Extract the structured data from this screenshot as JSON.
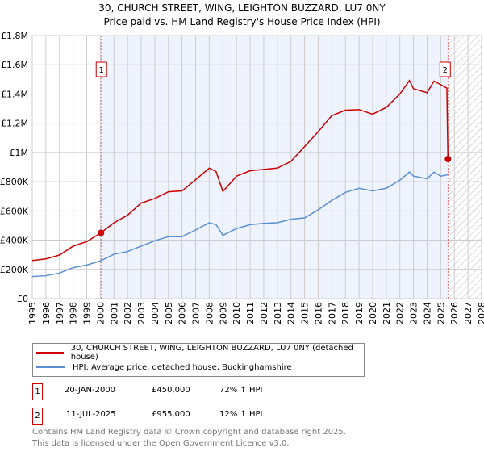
{
  "chart_data": {
    "type": "line",
    "title": "30, CHURCH STREET, WING, LEIGHTON BUZZARD, LU7 0NY",
    "subtitle": "Price paid vs. HM Land Registry's House Price Index (HPI)",
    "xlim": [
      1995,
      2028
    ],
    "ylim": [
      0,
      1800000
    ],
    "y_ticks": [
      0,
      200000,
      400000,
      600000,
      800000,
      1000000,
      1200000,
      1400000,
      1600000,
      1800000
    ],
    "y_tick_labels": [
      "£0",
      "£200K",
      "£400K",
      "£600K",
      "£800K",
      "£1M",
      "£1.2M",
      "£1.4M",
      "£1.6M",
      "£1.8M"
    ],
    "x_ticks": [
      1995,
      1996,
      1997,
      1998,
      1999,
      2000,
      2001,
      2002,
      2003,
      2004,
      2005,
      2006,
      2007,
      2008,
      2009,
      2010,
      2011,
      2012,
      2013,
      2014,
      2015,
      2016,
      2017,
      2018,
      2019,
      2020,
      2021,
      2022,
      2023,
      2024,
      2025,
      2026,
      2027,
      2028
    ],
    "grid": true,
    "series": [
      {
        "name": "30, CHURCH STREET, WING, LEIGHTON BUZZARD, LU7 0NY (detached house)",
        "color": "#cc0000",
        "x": [
          1995,
          1996,
          1997,
          1998,
          1999,
          2000.05,
          2001,
          2002,
          2003,
          2004,
          2005,
          2006,
          2007,
          2008,
          2008.5,
          2009,
          2010,
          2011,
          2012,
          2013,
          2014,
          2015,
          2016,
          2017,
          2018,
          2019,
          2020,
          2021,
          2022,
          2022.7,
          2023,
          2024,
          2024.5,
          2025,
          2025.45,
          2025.53
        ],
        "y": [
          261000,
          272000,
          298000,
          359000,
          390000,
          450000,
          519000,
          571000,
          654000,
          685000,
          731000,
          737000,
          814000,
          893000,
          869000,
          733000,
          838000,
          875000,
          884000,
          893000,
          939000,
          1040000,
          1142000,
          1252000,
          1289000,
          1293000,
          1262000,
          1308000,
          1400000,
          1492000,
          1436000,
          1409000,
          1488000,
          1464000,
          1440000,
          955000
        ]
      },
      {
        "name": "HPI: Average price, detached house, Buckinghamshire",
        "color": "#5b8fd4",
        "x": [
          1995,
          1996,
          1997,
          1998,
          1999,
          2000,
          2001,
          2002,
          2003,
          2004,
          2005,
          2006,
          2007,
          2008,
          2008.5,
          2009,
          2010,
          2011,
          2012,
          2013,
          2014,
          2015,
          2016,
          2017,
          2018,
          2019,
          2020,
          2021,
          2022,
          2022.7,
          2023,
          2024,
          2024.5,
          2025,
          2025.5
        ],
        "y": [
          151000,
          157000,
          175000,
          212000,
          230000,
          258000,
          304000,
          322000,
          359000,
          396000,
          424000,
          424000,
          470000,
          519000,
          506000,
          433000,
          479000,
          506000,
          515000,
          519000,
          543000,
          552000,
          608000,
          672000,
          727000,
          755000,
          737000,
          755000,
          810000,
          866000,
          838000,
          820000,
          866000,
          838000,
          847000
        ]
      }
    ],
    "sales": [
      {
        "label": "1",
        "x": 2000.05,
        "y": 450000,
        "date": "20-JAN-2000",
        "price": "£450,000",
        "hpi": "72% ↑ HPI"
      },
      {
        "label": "2",
        "x": 2025.53,
        "y": 955000,
        "date": "11-JUL-2025",
        "price": "£955,000",
        "hpi": "12% ↑ HPI"
      }
    ],
    "legend_placement": "below"
  },
  "footer": [
    "Contains HM Land Registry data © Crown copyright and database right 2025.",
    "This data is licensed under the Open Government Licence v3.0."
  ]
}
